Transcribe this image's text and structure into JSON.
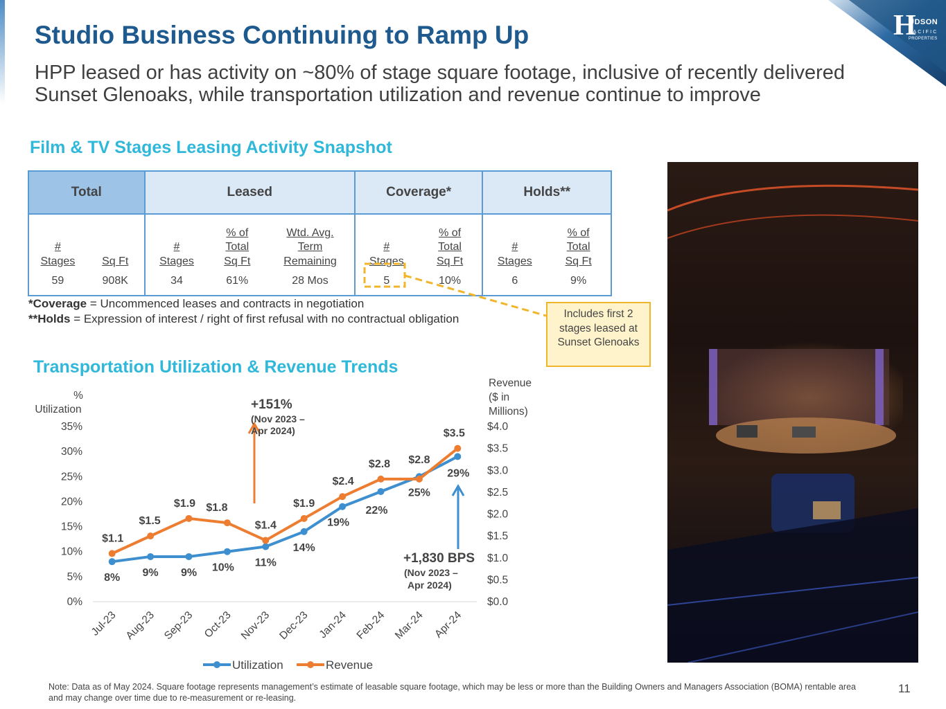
{
  "slide": {
    "title": "Studio Business Continuing to Ramp Up",
    "subtitle": "HPP leased or has activity on ~80% of stage square footage, inclusive of recently delivered Sunset Glenoaks, while transportation utilization and revenue continue to improve",
    "page_number": "11",
    "note": "Note: Data as of May 2024. Square footage represents management’s estimate of leasable square footage, which may be less or more than the Building Owners and Managers Association (BOMA) rentable area and may change over time due to re-measurement or re-leasing."
  },
  "logo": {
    "initial": "H",
    "line1": "UDSON",
    "line2": "PACIFIC",
    "line3": "PROPERTIES"
  },
  "stages": {
    "heading": "Film & TV Stages Leasing Activity Snapshot",
    "groups": [
      "Total",
      "Leased",
      "Coverage*",
      "Holds**"
    ],
    "sub": {
      "total_stages": [
        "#",
        "Stages"
      ],
      "total_sqft": [
        "Sq Ft"
      ],
      "leased_stages": [
        "#",
        "Stages"
      ],
      "leased_pct": [
        "% of",
        "Total",
        "Sq Ft"
      ],
      "leased_term": [
        "Wtd. Avg.",
        "Term",
        "Remaining"
      ],
      "cov_stages": [
        "#",
        "Stages"
      ],
      "cov_pct": [
        "% of",
        "Total",
        "Sq Ft"
      ],
      "hold_stages": [
        "#",
        "Stages"
      ],
      "hold_pct": [
        "% of",
        "Total",
        "Sq Ft"
      ]
    },
    "values": [
      "59",
      "908K",
      "34",
      "61%",
      "28 Mos",
      "5",
      "10%",
      "6",
      "9%"
    ],
    "footnote1_bold": "*Coverage",
    "footnote1_rest": " = Uncommenced leases and contracts in negotiation",
    "footnote2_bold": "**Holds",
    "footnote2_rest": " = Expression of interest / right of first refusal with no contractual obligation",
    "callout": "Includes first 2 stages leased at Sunset Glenoaks"
  },
  "transport": {
    "heading": "Transportation Utilization & Revenue Trends"
  },
  "colors": {
    "utilization": "#3d8fcf",
    "revenue": "#ed7d31",
    "callout": "#f0b62b",
    "title": "#1f5a8f",
    "section": "#2fb8d9"
  },
  "chart_data": {
    "type": "line",
    "categories": [
      "Jul-23",
      "Aug-23",
      "Sep-23",
      "Oct-23",
      "Nov-23",
      "Dec-23",
      "Jan-24",
      "Feb-24",
      "Mar-24",
      "Apr-24"
    ],
    "series": [
      {
        "name": "Utilization",
        "axis": "left",
        "values": [
          8,
          9,
          9,
          10,
          11,
          14,
          19,
          22,
          25,
          29
        ],
        "labels": [
          "8%",
          "9%",
          "9%",
          "10%",
          "11%",
          "14%",
          "19%",
          "22%",
          "25%",
          "29%"
        ]
      },
      {
        "name": "Revenue",
        "axis": "right",
        "values": [
          1.1,
          1.5,
          1.9,
          1.8,
          1.4,
          1.9,
          2.4,
          2.8,
          2.8,
          3.5
        ],
        "labels": [
          "$1.1",
          "$1.5",
          "$1.9",
          "$1.8",
          "$1.4",
          "$1.9",
          "$2.4",
          "$2.8",
          "$2.8",
          "$3.5"
        ]
      }
    ],
    "y_left": {
      "label": [
        "%",
        "Utilization"
      ],
      "ylim": [
        0,
        35
      ],
      "ticks": [
        "0%",
        "5%",
        "10%",
        "15%",
        "20%",
        "25%",
        "30%",
        "35%"
      ]
    },
    "y_right": {
      "label": [
        "Revenue",
        "($ in",
        "Millions)"
      ],
      "ylim": [
        0,
        4
      ],
      "ticks": [
        "$0.0",
        "$0.5",
        "$1.0",
        "$1.5",
        "$2.0",
        "$2.5",
        "$3.0",
        "$3.5",
        "$4.0"
      ]
    },
    "annotations": [
      {
        "series": "Revenue",
        "title": "+151%",
        "detail": [
          "(Nov 2023 –",
          "Apr 2024)"
        ]
      },
      {
        "series": "Utilization",
        "title": "+1,830 BPS",
        "detail": [
          "(Nov 2023 –",
          "Apr 2024)"
        ]
      }
    ],
    "legend": "bottom",
    "grid": false
  }
}
